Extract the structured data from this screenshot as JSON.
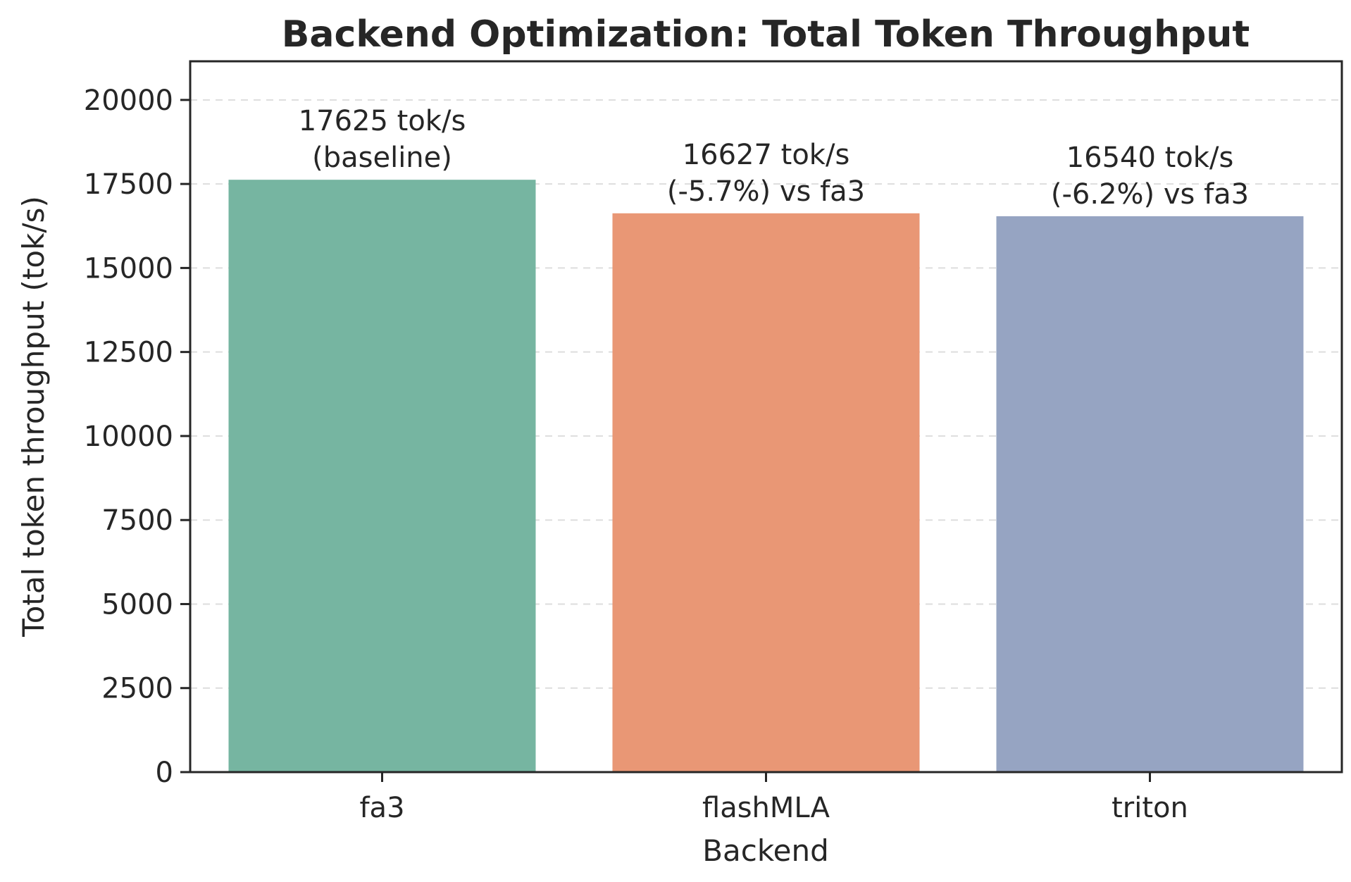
{
  "chart_data": {
    "type": "bar",
    "title": "Backend Optimization: Total Token Throughput",
    "xlabel": "Backend",
    "ylabel": "Total token throughput (tok/s)",
    "categories": [
      "fa3",
      "flashMLA",
      "triton"
    ],
    "values": [
      17625,
      16627,
      16540
    ],
    "bar_labels": [
      [
        "17625 tok/s",
        "(baseline)"
      ],
      [
        "16627 tok/s",
        "(-5.7%) vs fa3"
      ],
      [
        "16540 tok/s",
        "(-6.2%) vs fa3"
      ]
    ],
    "colors": [
      "#76b5a1",
      "#e99775",
      "#96a4c2"
    ],
    "ylim": [
      0,
      21150
    ],
    "yticks": [
      0,
      2500,
      5000,
      7500,
      10000,
      12500,
      15000,
      17500,
      20000
    ],
    "grid": true,
    "grid_axis": "y",
    "legend": "none"
  }
}
